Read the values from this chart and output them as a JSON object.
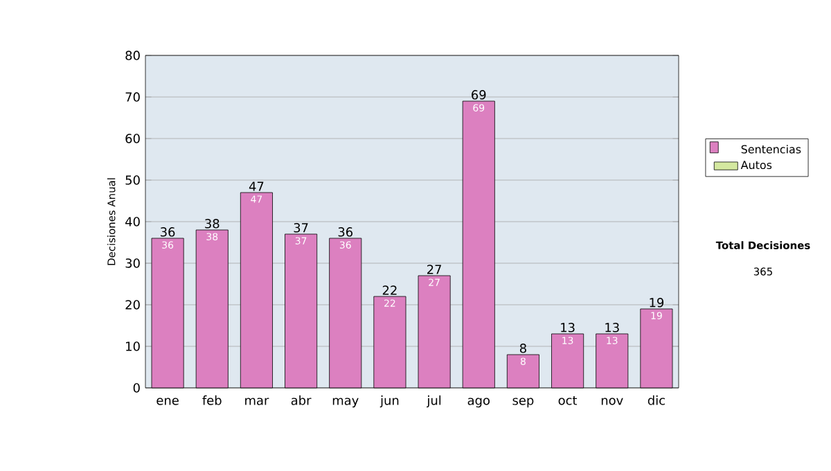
{
  "chart_data": {
    "type": "bar",
    "stacked": true,
    "ylabel": "Decisiones Anual",
    "categories": [
      "ene",
      "feb",
      "mar",
      "abr",
      "may",
      "jun",
      "jul",
      "ago",
      "sep",
      "oct",
      "nov",
      "dic"
    ],
    "series": [
      {
        "name": "Sentencias",
        "color": "#dc80c0",
        "values": [
          36,
          38,
          47,
          37,
          36,
          22,
          27,
          69,
          8,
          13,
          13,
          19
        ]
      },
      {
        "name": "Autos",
        "color": "#d4e8a0",
        "values": [
          null,
          null,
          null,
          null,
          null,
          null,
          null,
          null,
          null,
          null,
          null,
          null
        ]
      }
    ],
    "totals": [
      "36",
      "38",
      "47",
      "37",
      "36",
      "22",
      "27",
      "69",
      "8",
      "13",
      "13",
      "19"
    ],
    "data_labels": true,
    "ylim": [
      0,
      80
    ],
    "yticks": [
      0,
      10,
      20,
      30,
      40,
      50,
      60,
      70,
      80
    ],
    "grid": "y",
    "legend": "right",
    "annotations": [
      "Total Decisiones",
      "365"
    ]
  }
}
